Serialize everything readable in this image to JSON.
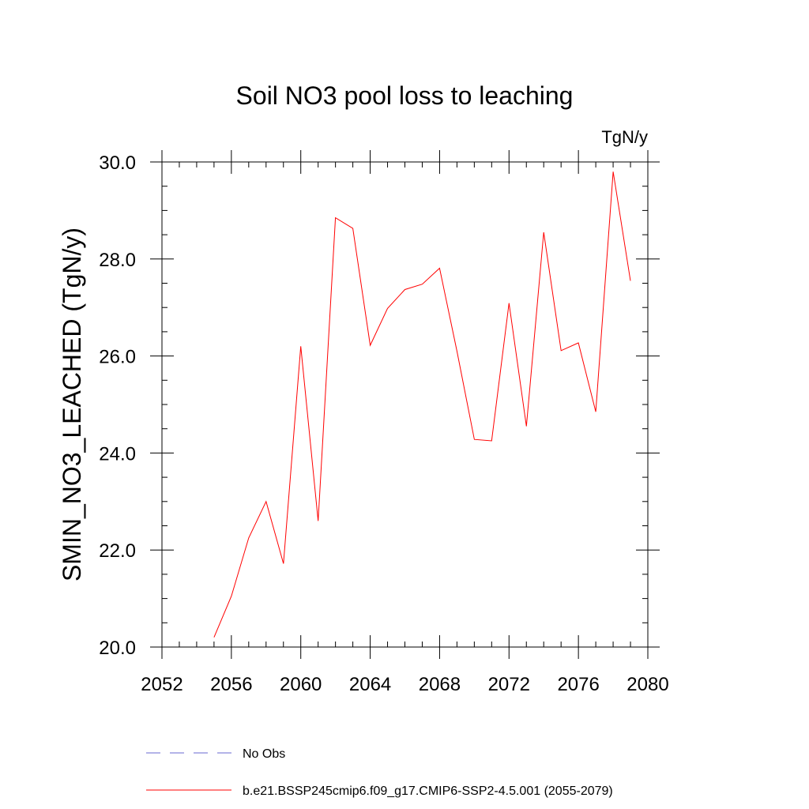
{
  "chart_data": {
    "type": "line",
    "title": "Soil NO3 pool loss to leaching",
    "units": "TgN/y",
    "xlabel": "",
    "ylabel": "SMIN_NO3_LEACHED  (TgN/y)",
    "xlim": [
      2052,
      2080
    ],
    "ylim": [
      20.0,
      30.0
    ],
    "xticks": [
      2052,
      2056,
      2060,
      2064,
      2068,
      2072,
      2076,
      2080
    ],
    "xtick_labels": [
      "2052",
      "2056",
      "2060",
      "2064",
      "2068",
      "2072",
      "2076",
      "2080"
    ],
    "yticks": [
      20,
      22,
      24,
      26,
      28,
      30
    ],
    "ytick_labels": [
      "20.0",
      "22.0",
      "24.0",
      "26.0",
      "28.0",
      "30.0"
    ],
    "grid": false,
    "legend_position": "bottom",
    "series": [
      {
        "name": "b.e21.BSSP245cmip6.f09_g17.CMIP6-SSP2-4.5.001 (2055-2079)",
        "color": "#ff0000",
        "dash": "solid",
        "x": [
          2055,
          2056,
          2057,
          2058,
          2059,
          2060,
          2061,
          2062,
          2063,
          2064,
          2065,
          2066,
          2067,
          2068,
          2069,
          2070,
          2071,
          2072,
          2073,
          2074,
          2075,
          2076,
          2077,
          2078,
          2079
        ],
        "y": [
          20.2,
          21.05,
          22.25,
          23.0,
          21.72,
          26.2,
          22.6,
          28.85,
          28.63,
          26.22,
          26.98,
          27.37,
          27.48,
          27.81,
          26.1,
          24.28,
          24.25,
          27.09,
          24.55,
          28.55,
          26.11,
          26.27,
          24.85,
          29.8,
          27.55
        ]
      }
    ],
    "legend": [
      {
        "label": "No Obs",
        "color": "#6a6ad0",
        "dash": "dashed"
      },
      {
        "label": "b.e21.BSSP245cmip6.f09_g17.CMIP6-SSP2-4.5.001 (2055-2079)",
        "color": "#ff0000",
        "dash": "solid"
      }
    ]
  }
}
